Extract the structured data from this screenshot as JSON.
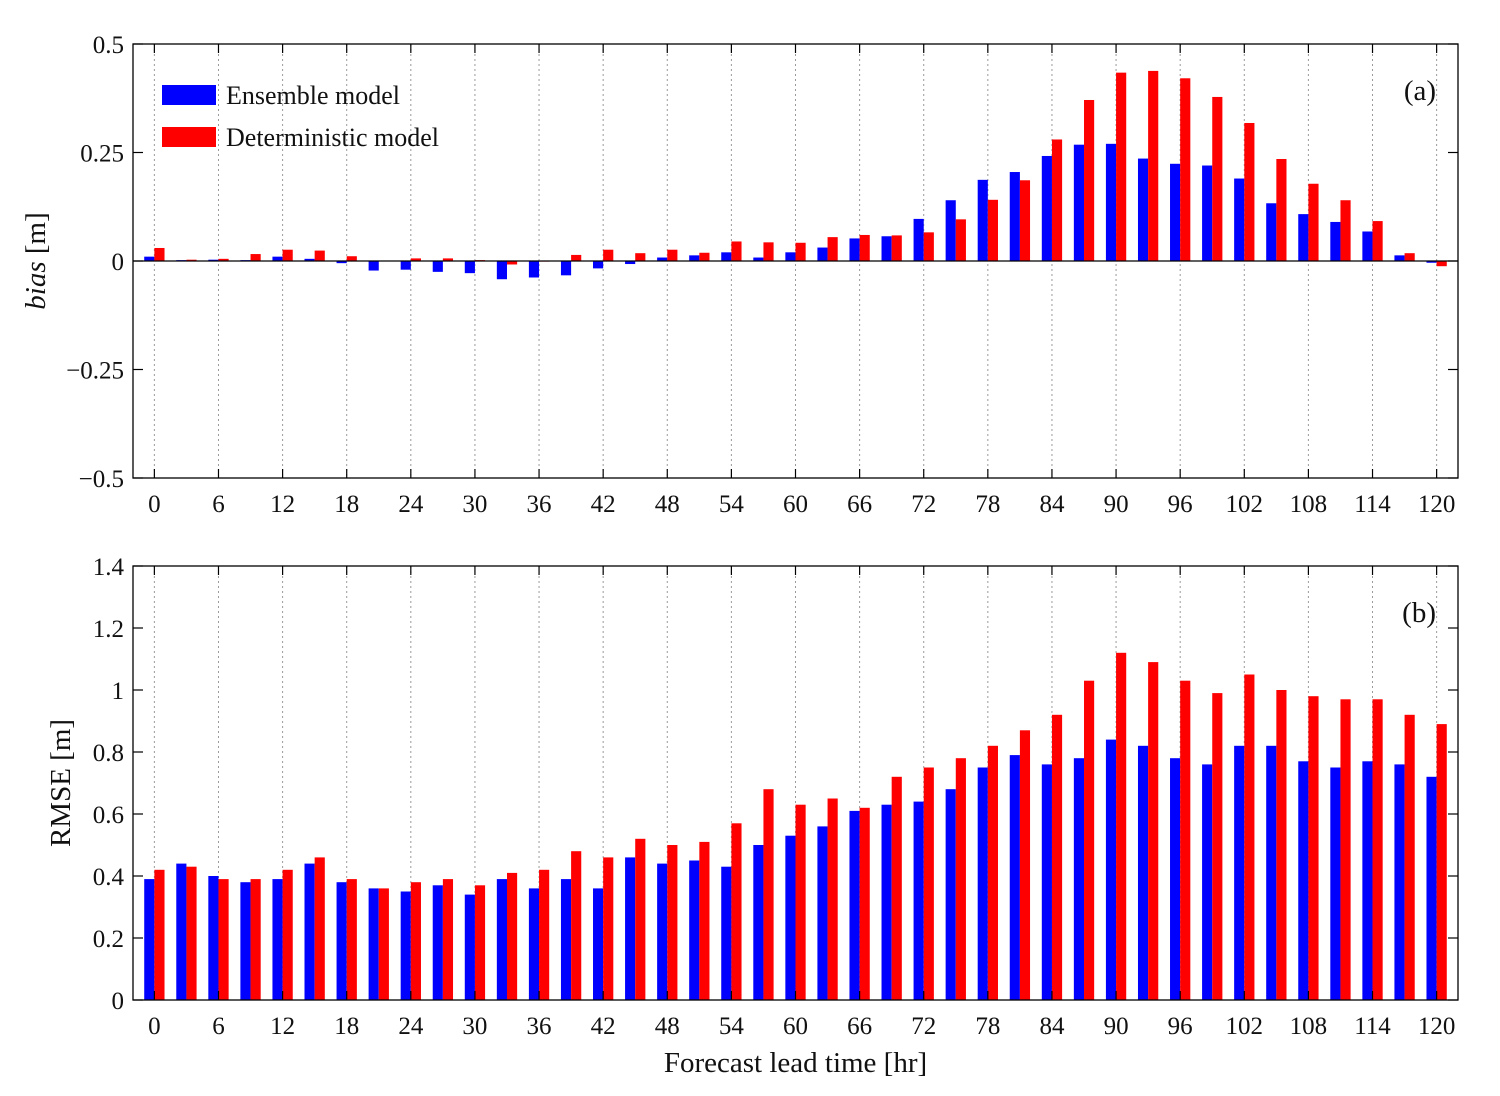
{
  "colors": {
    "ensemble": "#0000ff",
    "deterministic": "#ff0000",
    "axis": "#000000",
    "grid": "#9a9a9a"
  },
  "chart_data": [
    {
      "type": "bar",
      "panel": "(a)",
      "ylabel_italic": "bias",
      "ylabel_unit": " [m]",
      "xlabel": "",
      "xlim": [
        -2,
        122
      ],
      "ylim": [
        -0.5,
        0.5
      ],
      "yticks": [
        0.5,
        0.25,
        0,
        -0.25,
        -0.5
      ],
      "ytick_labels": [
        "0.5",
        "0.25",
        "0",
        "−0.25",
        "−0.5"
      ],
      "xticks": [
        0,
        6,
        12,
        18,
        24,
        30,
        36,
        42,
        48,
        54,
        60,
        66,
        72,
        78,
        84,
        90,
        96,
        102,
        108,
        114,
        120
      ],
      "xtick_labels": [
        "0",
        "6",
        "12",
        "18",
        "24",
        "30",
        "36",
        "42",
        "48",
        "54",
        "60",
        "66",
        "72",
        "78",
        "84",
        "90",
        "96",
        "102",
        "108",
        "114",
        "120"
      ],
      "grid": "vertical-dotted",
      "legend_position": "top-left",
      "x": [
        0,
        3,
        6,
        9,
        12,
        15,
        18,
        21,
        24,
        27,
        30,
        33,
        36,
        39,
        42,
        45,
        48,
        51,
        54,
        57,
        60,
        63,
        66,
        69,
        72,
        75,
        78,
        81,
        84,
        87,
        90,
        93,
        96,
        99,
        102,
        105,
        108,
        111,
        114,
        117,
        120
      ],
      "series": [
        {
          "name": "Ensemble model",
          "color": "ensemble",
          "values": [
            0.01,
            0.002,
            0.003,
            0.002,
            0.01,
            0.005,
            -0.005,
            -0.022,
            -0.02,
            -0.025,
            -0.028,
            -0.042,
            -0.038,
            -0.033,
            -0.017,
            -0.007,
            0.008,
            0.013,
            0.02,
            0.008,
            0.02,
            0.031,
            0.052,
            0.057,
            0.097,
            0.14,
            0.187,
            0.205,
            0.242,
            0.268,
            0.27,
            0.236,
            0.224,
            0.22,
            0.19,
            0.133,
            0.108,
            0.09,
            0.068,
            0.013,
            -0.004
          ]
        },
        {
          "name": "Deterministic model",
          "color": "deterministic",
          "values": [
            0.03,
            0.003,
            0.005,
            0.016,
            0.026,
            0.024,
            0.011,
            0.001,
            0.006,
            0.006,
            0.002,
            -0.008,
            -0.001,
            0.014,
            0.026,
            0.018,
            0.026,
            0.019,
            0.045,
            0.043,
            0.042,
            0.055,
            0.06,
            0.059,
            0.066,
            0.096,
            0.141,
            0.186,
            0.28,
            0.371,
            0.434,
            0.438,
            0.421,
            0.378,
            0.318,
            0.235,
            0.178,
            0.14,
            0.092,
            0.018,
            -0.012
          ]
        }
      ]
    },
    {
      "type": "bar",
      "panel": "(b)",
      "ylabel": "RMSE [m]",
      "xlabel": "Forecast lead time [hr]",
      "xlim": [
        -2,
        122
      ],
      "ylim": [
        0,
        1.4
      ],
      "yticks": [
        1.4,
        1.2,
        1,
        0.8,
        0.6,
        0.4,
        0.2,
        0
      ],
      "ytick_labels": [
        "1.4",
        "1.2",
        "1",
        "0.8",
        "0.6",
        "0.4",
        "0.2",
        "0"
      ],
      "xticks": [
        0,
        6,
        12,
        18,
        24,
        30,
        36,
        42,
        48,
        54,
        60,
        66,
        72,
        78,
        84,
        90,
        96,
        102,
        108,
        114,
        120
      ],
      "xtick_labels": [
        "0",
        "6",
        "12",
        "18",
        "24",
        "30",
        "36",
        "42",
        "48",
        "54",
        "60",
        "66",
        "72",
        "78",
        "84",
        "90",
        "96",
        "102",
        "108",
        "114",
        "120"
      ],
      "grid": "vertical-dotted",
      "x": [
        0,
        3,
        6,
        9,
        12,
        15,
        18,
        21,
        24,
        27,
        30,
        33,
        36,
        39,
        42,
        45,
        48,
        51,
        54,
        57,
        60,
        63,
        66,
        69,
        72,
        75,
        78,
        81,
        84,
        87,
        90,
        93,
        96,
        99,
        102,
        105,
        108,
        111,
        114,
        117,
        120
      ],
      "series": [
        {
          "name": "Ensemble model",
          "color": "ensemble",
          "values": [
            0.39,
            0.44,
            0.4,
            0.38,
            0.39,
            0.44,
            0.38,
            0.36,
            0.35,
            0.37,
            0.34,
            0.39,
            0.36,
            0.39,
            0.36,
            0.46,
            0.44,
            0.45,
            0.43,
            0.5,
            0.53,
            0.56,
            0.61,
            0.63,
            0.64,
            0.68,
            0.75,
            0.79,
            0.76,
            0.78,
            0.84,
            0.82,
            0.78,
            0.76,
            0.82,
            0.82,
            0.77,
            0.75,
            0.77,
            0.76,
            0.72
          ]
        },
        {
          "name": "Deterministic model",
          "color": "deterministic",
          "values": [
            0.42,
            0.43,
            0.39,
            0.39,
            0.42,
            0.46,
            0.39,
            0.36,
            0.38,
            0.39,
            0.37,
            0.41,
            0.42,
            0.48,
            0.46,
            0.52,
            0.5,
            0.51,
            0.57,
            0.68,
            0.63,
            0.65,
            0.62,
            0.72,
            0.75,
            0.78,
            0.82,
            0.87,
            0.92,
            1.03,
            1.12,
            1.09,
            1.03,
            0.99,
            1.05,
            1.0,
            0.98,
            0.97,
            0.97,
            0.92,
            0.89
          ]
        }
      ]
    }
  ]
}
